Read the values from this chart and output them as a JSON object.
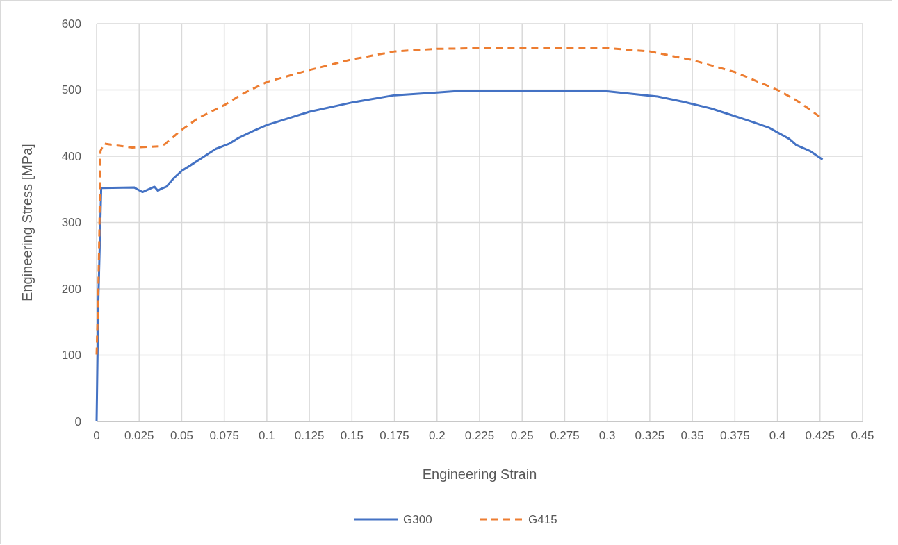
{
  "chart_data": {
    "type": "line",
    "xlabel": "Engineering Strain",
    "ylabel": "Engineering Stress [MPa]",
    "xlim": [
      0,
      0.45
    ],
    "xticks": [
      0,
      0.025,
      0.05,
      0.075,
      0.1,
      0.125,
      0.15,
      0.175,
      0.2,
      0.225,
      0.25,
      0.275,
      0.3,
      0.325,
      0.35,
      0.375,
      0.4,
      0.425,
      0.45
    ],
    "ylim": [
      0,
      600
    ],
    "yticks": [
      0,
      100,
      200,
      300,
      400,
      500,
      600
    ],
    "grid": true,
    "legend": "bottom",
    "series": [
      {
        "name": "G300",
        "color": "#4472c4",
        "line_style": "solid",
        "x": [
          0,
          0.001,
          0.0027,
          0.022,
          0.024,
          0.027,
          0.034,
          0.036,
          0.038,
          0.041,
          0.045,
          0.05,
          0.055,
          0.064,
          0.07,
          0.078,
          0.083,
          0.092,
          0.1,
          0.125,
          0.15,
          0.175,
          0.2,
          0.21,
          0.25,
          0.3,
          0.3296,
          0.345,
          0.361,
          0.373,
          0.385,
          0.395,
          0.407,
          0.411,
          0.419,
          0.4265
        ],
        "values": [
          0,
          180,
          352,
          353,
          350,
          346,
          354,
          348,
          351,
          354,
          366,
          378,
          386,
          401,
          411,
          419,
          427,
          438,
          447,
          467,
          481,
          492,
          496,
          498,
          498,
          498,
          490,
          482,
          472,
          462,
          452,
          443,
          426,
          417,
          408,
          395
        ]
      },
      {
        "name": "G415",
        "color": "#ed7d31",
        "line_style": "dashed",
        "x": [
          0,
          0.001,
          0.0017,
          0.002,
          0.0023,
          0.0044,
          0.0098,
          0.021,
          0.0275,
          0.037,
          0.04,
          0.045,
          0.049,
          0.06,
          0.075,
          0.085,
          0.1,
          0.125,
          0.15,
          0.175,
          0.2,
          0.225,
          0.3,
          0.325,
          0.35,
          0.375,
          0.4,
          0.41,
          0.417,
          0.425
        ],
        "values": [
          101,
          192,
          298,
          364,
          408,
          419,
          417,
          413,
          414,
          415,
          418,
          429,
          438,
          458,
          477,
          493,
          512,
          530,
          546,
          558,
          562,
          563,
          563,
          558,
          545,
          527,
          500,
          486,
          474,
          459
        ]
      }
    ]
  }
}
